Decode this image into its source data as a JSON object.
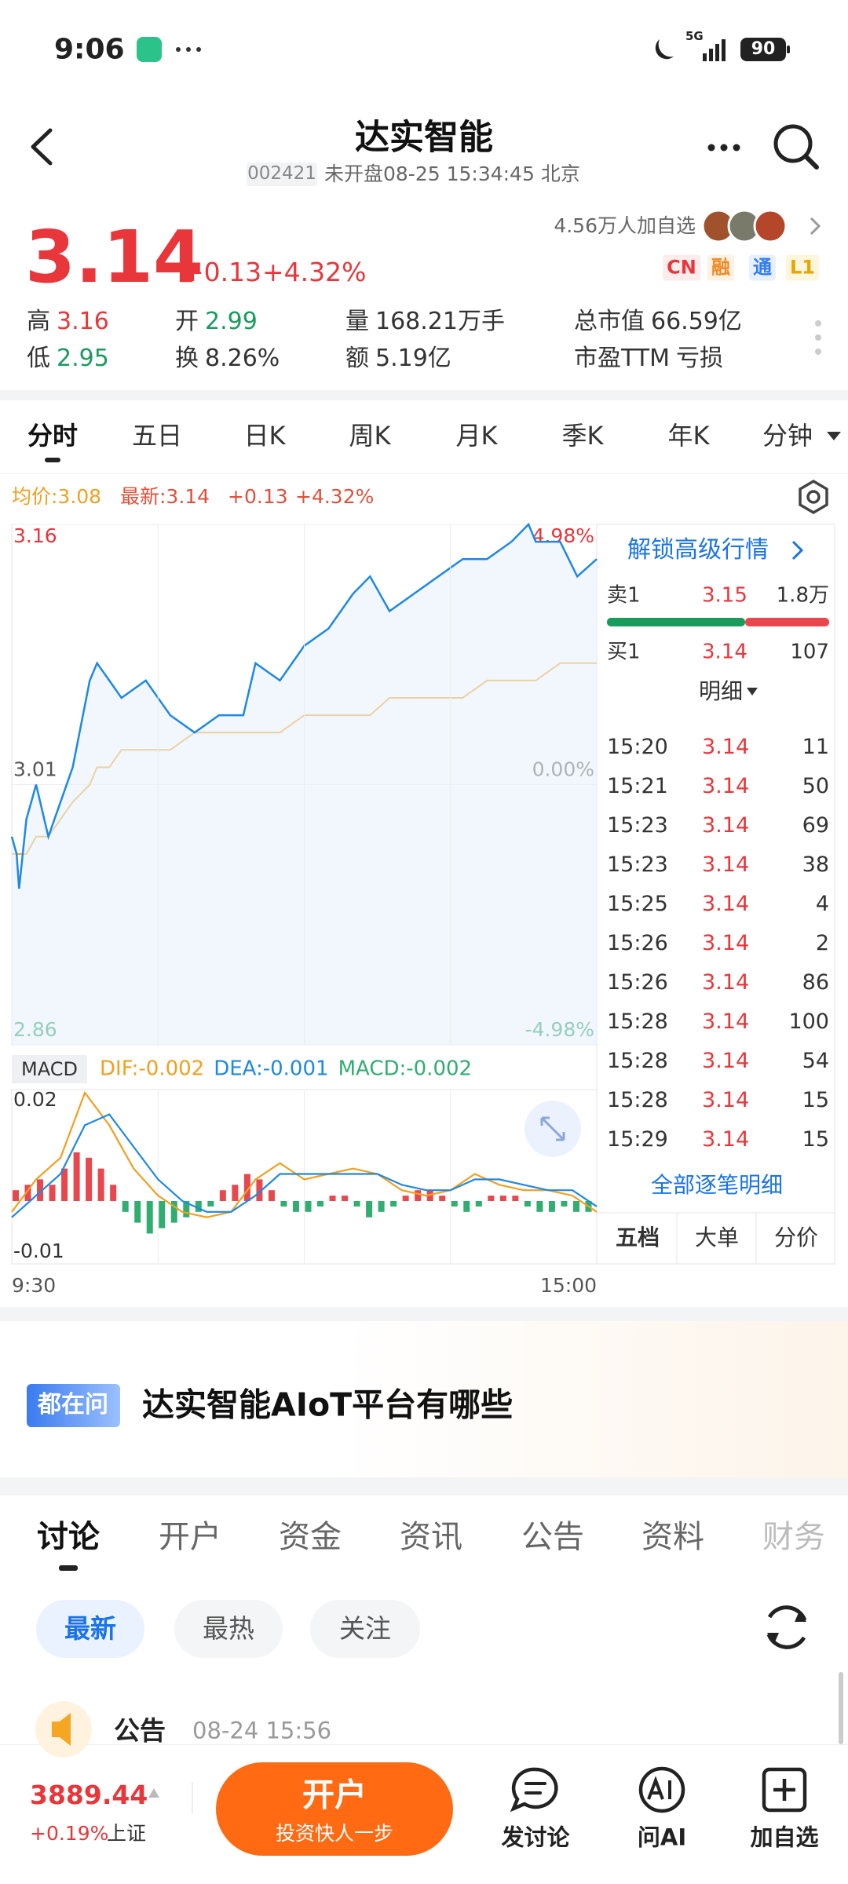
{
  "status_bar": {
    "time": "9:06",
    "network": "5G",
    "battery": "90"
  },
  "header": {
    "title": "达实智能",
    "code": "002421",
    "status": "未开盘08-25 15:34:45 北京"
  },
  "quote": {
    "price": "3.14",
    "change": "+0.13",
    "change_pct": "+4.32%",
    "followers": "4.56万人加自选",
    "tags": [
      "CN",
      "融",
      "通",
      "L1"
    ],
    "stats": [
      {
        "label": "高",
        "value": "3.16"
      },
      {
        "label": "开",
        "value": "2.99"
      },
      {
        "label": "量",
        "value": "168.21万手"
      },
      {
        "label": "总市值",
        "value": "66.59亿"
      },
      {
        "label": "低",
        "value": "2.95"
      },
      {
        "label": "换",
        "value": "8.26%"
      },
      {
        "label": "额",
        "value": "5.19亿"
      },
      {
        "label": "市盈TTM",
        "value": "亏损"
      }
    ]
  },
  "chart_tabs": [
    "分时",
    "五日",
    "日K",
    "周K",
    "月K",
    "季K",
    "年K",
    "分钟"
  ],
  "chart_info": {
    "change": "+0.13",
    "change_pct": "+4.32%"
  },
  "chart_data": [
    {
      "type": "line",
      "x": [
        0,
        2,
        3,
        6,
        10,
        15,
        20,
        25,
        32,
        35,
        40,
        45,
        55,
        65,
        75,
        85,
        95,
        100,
        110,
        120,
        130,
        140,
        147,
        155,
        165,
        175,
        185,
        195,
        205,
        212,
        215,
        225,
        232,
        240
      ],
      "xlim": [
        0,
        240
      ],
      "ylim": [
        2.86,
        3.16
      ],
      "yticks": [
        3.16,
        3.01,
        2.86
      ],
      "y2lim": [
        -4.98,
        4.98
      ],
      "y2ticks": [
        {
          "value": 4.98,
          "label": "4.98%"
        },
        {
          "value": 0,
          "label": "0.00%"
        },
        {
          "value": -4.98,
          "label": "-4.98%"
        }
      ],
      "grid": true,
      "series": [
        {
          "name": "均价:3.08",
          "color": "#f0a020",
          "values": [
            2.97,
            2.97,
            2.97,
            2.97,
            2.98,
            2.98,
            2.99,
            3.0,
            3.01,
            3.02,
            3.02,
            3.03,
            3.03,
            3.03,
            3.04,
            3.04,
            3.04,
            3.04,
            3.04,
            3.05,
            3.05,
            3.05,
            3.05,
            3.06,
            3.06,
            3.06,
            3.06,
            3.07,
            3.07,
            3.07,
            3.07,
            3.08,
            3.08,
            3.08
          ]
        },
        {
          "name": "最新:3.14",
          "color": "#1e88e5",
          "values": [
            2.98,
            2.97,
            2.95,
            2.99,
            3.01,
            2.98,
            3.0,
            3.02,
            3.07,
            3.08,
            3.07,
            3.06,
            3.07,
            3.05,
            3.04,
            3.05,
            3.05,
            3.08,
            3.07,
            3.09,
            3.1,
            3.12,
            3.13,
            3.11,
            3.12,
            3.13,
            3.14,
            3.14,
            3.15,
            3.16,
            3.15,
            3.15,
            3.13,
            3.14
          ]
        }
      ]
    },
    {
      "type": "macd",
      "title": "MACD",
      "xlim": [
        0,
        240
      ],
      "xticks": [
        {
          "value": 0,
          "label": "9:30"
        },
        {
          "value": 60,
          "label": null
        },
        {
          "value": 120,
          "label": null
        },
        {
          "value": 180,
          "label": null
        },
        {
          "value": 240,
          "label": "15:00"
        }
      ],
      "ylim": [
        -0.01,
        0.02
      ],
      "yticks": [
        0.02,
        -0.01
      ],
      "bar_x": [
        0,
        5,
        10,
        15,
        20,
        25,
        30,
        35,
        40,
        45,
        50,
        55,
        60,
        65,
        70,
        75,
        80,
        85,
        90,
        95,
        100,
        105,
        110,
        115,
        120,
        125,
        130,
        135,
        140,
        145,
        150,
        155,
        160,
        165,
        170,
        175,
        180,
        185,
        190,
        195,
        200,
        205,
        210,
        215,
        220,
        225,
        230,
        235
      ],
      "histogram": {
        "name": "MACD:-0.002",
        "up_color": "#e8474d",
        "down_color": "#2fae70",
        "values": [
          0.002,
          0.003,
          0.004,
          0.003,
          0.006,
          0.009,
          0.008,
          0.006,
          0.003,
          -0.002,
          -0.004,
          -0.006,
          -0.005,
          -0.004,
          -0.003,
          -0.002,
          -0.001,
          0.002,
          0.003,
          0.005,
          0.004,
          0.002,
          -0.001,
          -0.002,
          -0.002,
          -0.001,
          0.001,
          0.001,
          -0.001,
          -0.003,
          -0.002,
          -0.001,
          0.001,
          0.002,
          0.002,
          0.001,
          -0.001,
          -0.002,
          -0.001,
          0.001,
          0.001,
          0.001,
          -0.001,
          -0.002,
          -0.002,
          -0.001,
          -0.002,
          -0.002
        ]
      },
      "x": [
        0,
        10,
        20,
        30,
        40,
        50,
        60,
        70,
        80,
        90,
        100,
        110,
        120,
        130,
        140,
        150,
        160,
        170,
        180,
        190,
        200,
        210,
        220,
        230,
        240
      ],
      "series": [
        {
          "name": "DIF:-0.002",
          "color": "#f0a020",
          "values": [
            -0.002,
            0.004,
            0.008,
            0.02,
            0.014,
            0.006,
            0.001,
            -0.002,
            -0.003,
            -0.002,
            0.004,
            0.007,
            0.004,
            0.005,
            0.006,
            0.005,
            0.002,
            0.001,
            0.002,
            0.005,
            0.003,
            0.002,
            0.002,
            0.001,
            -0.002
          ]
        },
        {
          "name": "DEA:-0.001",
          "color": "#1e88e5",
          "values": [
            -0.003,
            0.001,
            0.005,
            0.014,
            0.016,
            0.01,
            0.004,
            0.0,
            -0.002,
            -0.002,
            0.001,
            0.005,
            0.005,
            0.005,
            0.005,
            0.005,
            0.003,
            0.002,
            0.002,
            0.004,
            0.004,
            0.003,
            0.002,
            0.002,
            -0.001
          ]
        }
      ]
    }
  ],
  "order_book": {
    "unlock": "解锁高级行情",
    "ask": {
      "label": "卖1",
      "price": "3.15",
      "volume": "1.8万"
    },
    "bid": {
      "label": "买1",
      "price": "3.14",
      "volume": "107"
    },
    "detail_title": "明细",
    "trades": [
      [
        "15:20",
        "3.14",
        "11"
      ],
      [
        "15:21",
        "3.14",
        "50"
      ],
      [
        "15:23",
        "3.14",
        "69"
      ],
      [
        "15:23",
        "3.14",
        "38"
      ],
      [
        "15:25",
        "3.14",
        "4"
      ],
      [
        "15:26",
        "3.14",
        "2"
      ],
      [
        "15:26",
        "3.14",
        "86"
      ],
      [
        "15:28",
        "3.14",
        "100"
      ],
      [
        "15:28",
        "3.14",
        "54"
      ],
      [
        "15:28",
        "3.14",
        "15"
      ],
      [
        "15:29",
        "3.14",
        "15"
      ]
    ],
    "all_detail": "全部逐笔明细",
    "tabs": [
      "五档",
      "大单",
      "分价"
    ]
  },
  "ask_section": {
    "tag": "都在问",
    "question": "达实智能AIoT平台有哪些"
  },
  "content_tabs": [
    "讨论",
    "开户",
    "资金",
    "资讯",
    "公告",
    "资料",
    "财务"
  ],
  "filters": [
    "最新",
    "最热",
    "关注"
  ],
  "post": {
    "source": "公告",
    "time": "08-24 15:56"
  },
  "bottom_bar": {
    "index_value": "3889.44",
    "index_change": "+0.19%",
    "index_name": "上证",
    "cta_title": "开户",
    "cta_subtitle": "投资快人一步",
    "actions": [
      "发讨论",
      "问AI",
      "加自选"
    ]
  }
}
